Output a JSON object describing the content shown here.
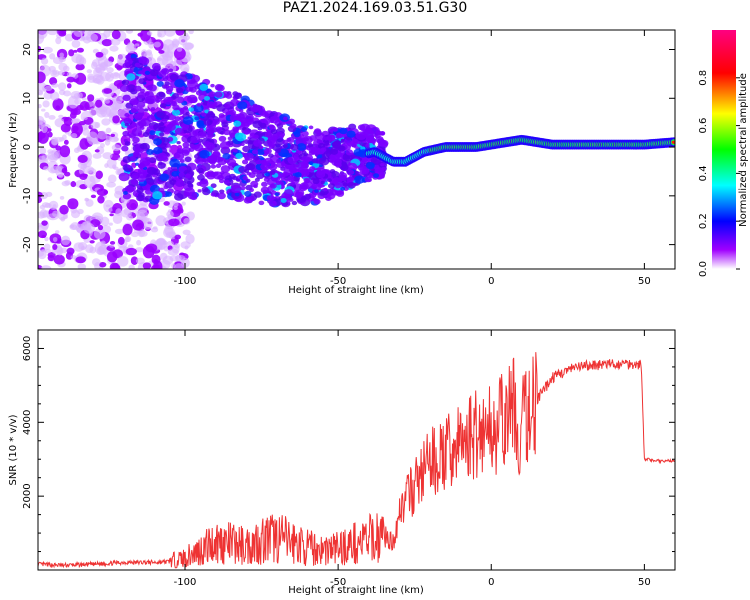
{
  "title": "PAZ1.2024.169.03.51.G30",
  "chart_data": [
    {
      "type": "heatmap",
      "xlabel": "Height of straight line (km)",
      "ylabel": "Frequency (Hz)",
      "xlim": [
        -148,
        60
      ],
      "ylim": [
        -25,
        24
      ],
      "x_ticks": [
        -100,
        -50,
        0,
        50
      ],
      "y_ticks": [
        -20,
        -10,
        0,
        10,
        20
      ],
      "colorbar": {
        "label": "Normalized spectral amplitude",
        "range": [
          0,
          1
        ],
        "ticks": [
          0.0,
          0.2,
          0.4,
          0.6,
          0.8
        ]
      },
      "frequency_track": [
        {
          "x": -125,
          "y": 5
        },
        {
          "x": -110,
          "y": 3
        },
        {
          "x": -95,
          "y": 2
        },
        {
          "x": -85,
          "y": 1
        },
        {
          "x": -75,
          "y": -2
        },
        {
          "x": -65,
          "y": -3
        },
        {
          "x": -55,
          "y": -4
        },
        {
          "x": -45,
          "y": -2
        },
        {
          "x": -38,
          "y": -1
        },
        {
          "x": -32,
          "y": -3
        },
        {
          "x": -28,
          "y": -3
        },
        {
          "x": -22,
          "y": -1
        },
        {
          "x": -15,
          "y": 0
        },
        {
          "x": -5,
          "y": 0
        },
        {
          "x": 5,
          "y": 1
        },
        {
          "x": 10,
          "y": 1.5
        },
        {
          "x": 20,
          "y": 0.5
        },
        {
          "x": 35,
          "y": 0.5
        },
        {
          "x": 50,
          "y": 0.5
        },
        {
          "x": 60,
          "y": 1
        }
      ]
    },
    {
      "type": "line",
      "xlabel": "Height of straight line (km)",
      "ylabel": "SNR (10 * v/v)",
      "xlim": [
        -148,
        60
      ],
      "ylim": [
        0,
        6500
      ],
      "x_ticks": [
        -100,
        -50,
        0,
        50
      ],
      "y_ticks": [
        2000,
        4000,
        6000
      ],
      "color": "#ee3333",
      "series": [
        {
          "x": [
            -148,
            -140,
            -130,
            -120,
            -110,
            -105,
            -100,
            -95,
            -90,
            -85,
            -80,
            -75,
            -70,
            -65,
            -60,
            -55,
            -50,
            -45,
            -40,
            -35,
            -32,
            -30,
            -28,
            -25,
            -22,
            -20,
            -15,
            -10,
            -5,
            0,
            5,
            8,
            9,
            10,
            15,
            20,
            25,
            30,
            35,
            40,
            45,
            49,
            50,
            55,
            60
          ],
          "y": [
            150,
            120,
            150,
            200,
            200,
            220,
            300,
            500,
            700,
            650,
            600,
            750,
            800,
            700,
            550,
            500,
            550,
            650,
            750,
            900,
            700,
            1600,
            1800,
            2200,
            2600,
            2800,
            3000,
            3300,
            3600,
            3700,
            3900,
            4500,
            2200,
            3800,
            4600,
            5200,
            5400,
            5500,
            5550,
            5550,
            5580,
            5550,
            3000,
            2950,
            2950
          ]
        }
      ]
    }
  ]
}
